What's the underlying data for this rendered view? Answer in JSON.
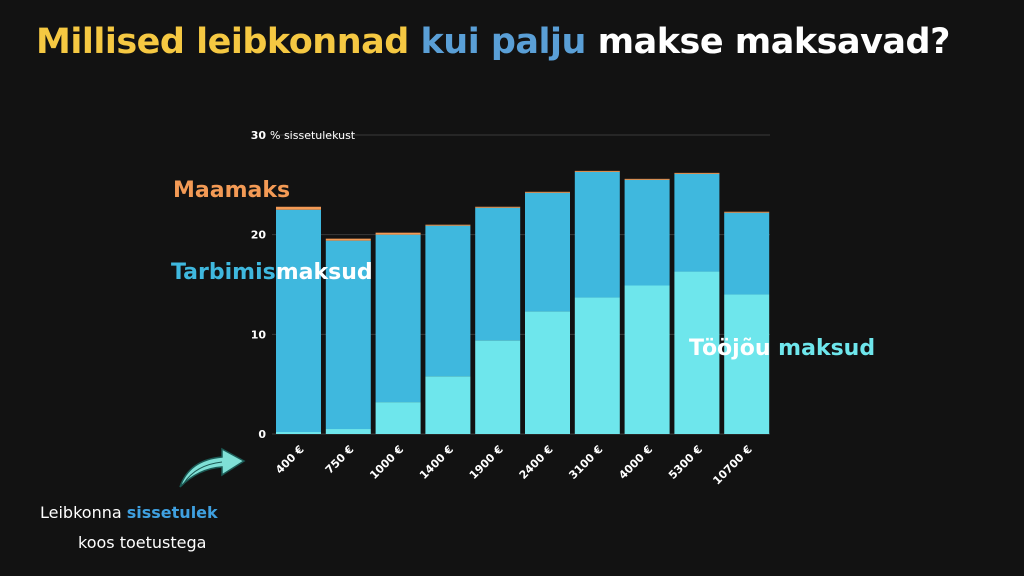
{
  "title": {
    "part1": "Millised leibkonnad",
    "part2": "kui palju",
    "part3": "makse maksavad?"
  },
  "labels": {
    "maamaks": "Maamaks",
    "tarbimis_a": "Tarbimis",
    "tarbimis_b": "maksud",
    "toojou_a": "Tööjõu",
    "toojou_b": "maksud"
  },
  "footnote": {
    "line1_a": "Leibkonna",
    "line1_b": "sissetulek",
    "line2": "koos toetustega"
  },
  "colors": {
    "toojou": "#6ee6ec",
    "tarbimis": "#3fb8de",
    "maamaks": "#f39a55",
    "title_yellow": "#f5c842",
    "title_blue": "#5a9fd6"
  },
  "chart_data": {
    "type": "bar",
    "stacked": true,
    "categories": [
      "400 €",
      "750 €",
      "1000 €",
      "1400 €",
      "1900 €",
      "2400 €",
      "3100 €",
      "4000 €",
      "5300 €",
      "10700 €"
    ],
    "series": [
      {
        "name": "Tööjõu maksud",
        "values": [
          0.2,
          0.5,
          3.2,
          5.8,
          9.4,
          12.3,
          13.7,
          14.9,
          16.3,
          14.0
        ]
      },
      {
        "name": "Tarbimismaksud",
        "values": [
          22.3,
          18.9,
          16.8,
          15.1,
          13.3,
          11.9,
          12.6,
          10.6,
          9.8,
          8.2
        ]
      },
      {
        "name": "Maamaks",
        "values": [
          0.3,
          0.2,
          0.2,
          0.1,
          0.1,
          0.1,
          0.1,
          0.1,
          0.1,
          0.1
        ]
      }
    ],
    "y_ticks": [
      "0",
      "10",
      "20",
      "30"
    ],
    "y_unit_label": "% sissetulekust",
    "ylim": [
      0,
      30
    ],
    "grid": true
  }
}
